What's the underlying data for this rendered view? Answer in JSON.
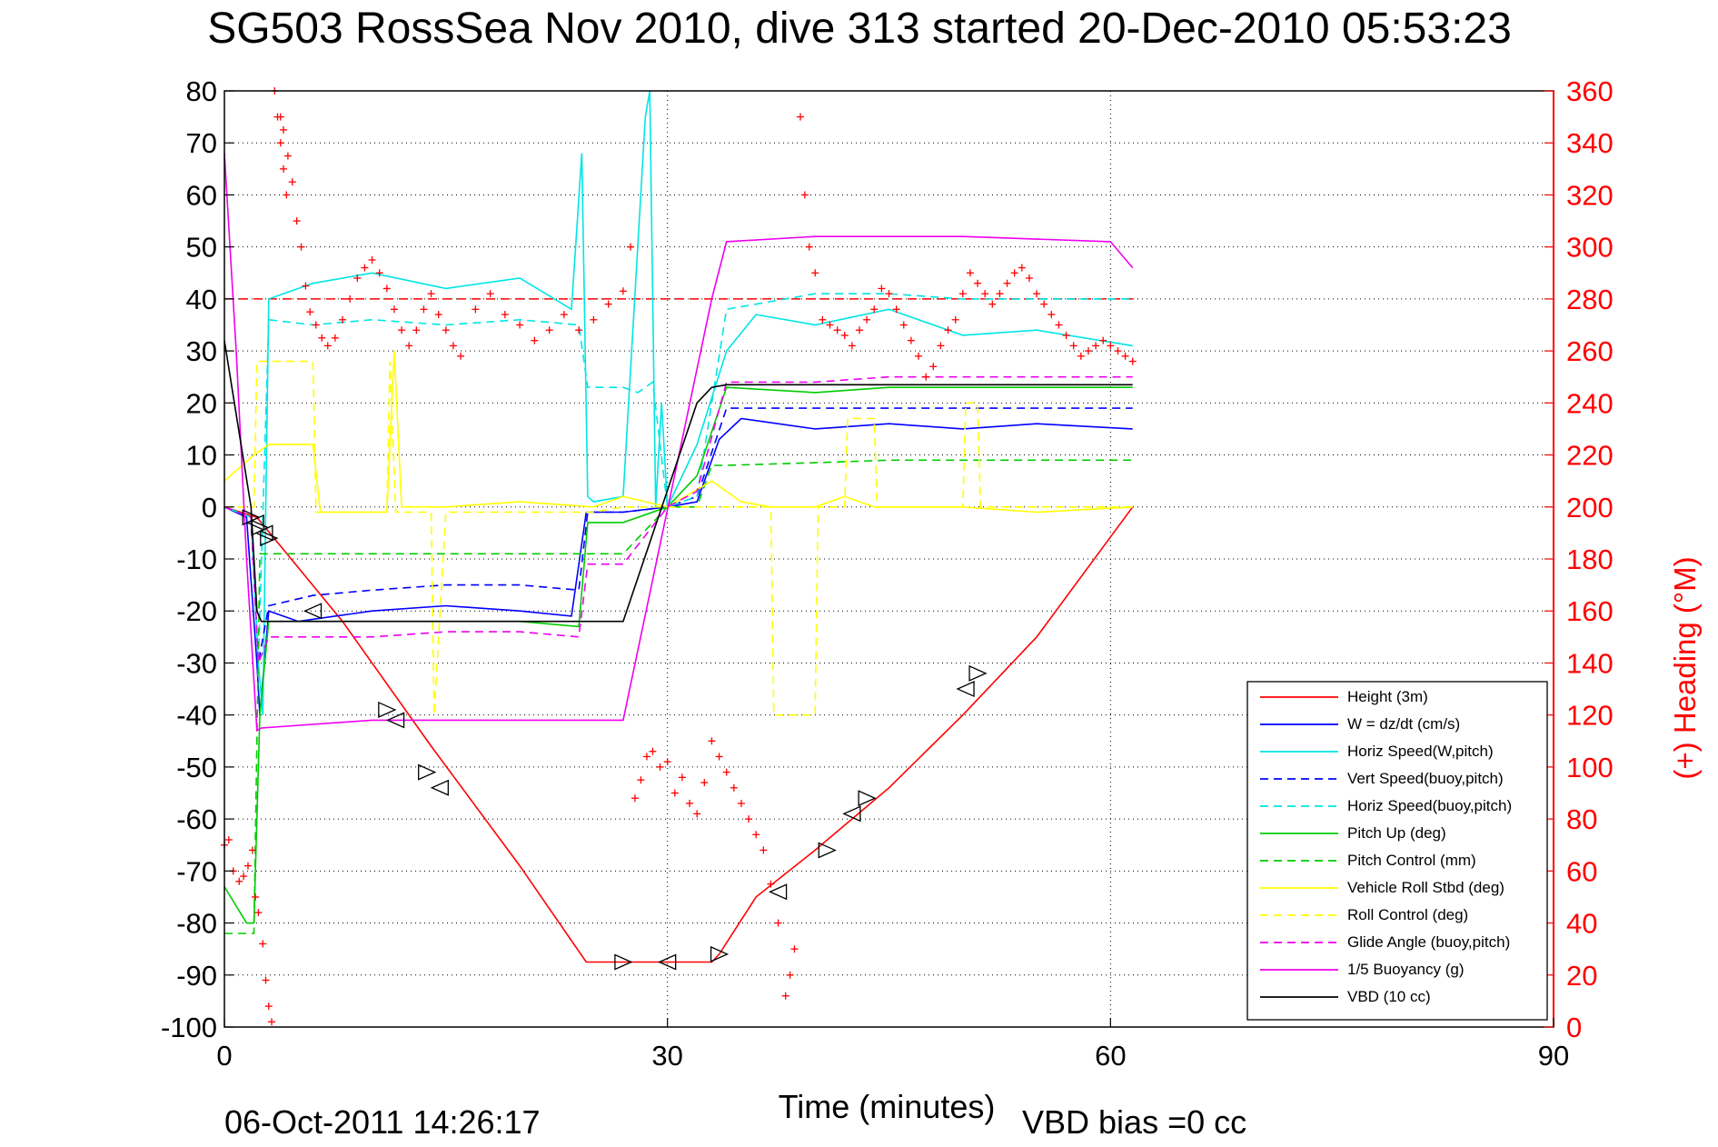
{
  "chart_data": {
    "type": "line",
    "title": "SG503 RossSea Nov 2010, dive 313 started 20-Dec-2010 05:53:23",
    "xlabel": "Time (minutes)",
    "ylabel_right": "(+) Heading (°M)",
    "xlim": [
      0,
      90
    ],
    "ylim": [
      -100,
      80
    ],
    "ylim_right": [
      0,
      360
    ],
    "x_ticks": [
      "0",
      "30",
      "60",
      "90"
    ],
    "y_ticks": [
      "80",
      "70",
      "60",
      "50",
      "40",
      "30",
      "20",
      "10",
      "0",
      "-10",
      "-20",
      "-30",
      "-40",
      "-50",
      "-60",
      "-70",
      "-80",
      "-90",
      "-100"
    ],
    "y_ticks_right": [
      "360",
      "340",
      "320",
      "300",
      "280",
      "260",
      "240",
      "220",
      "200",
      "180",
      "160",
      "140",
      "120",
      "100",
      "80",
      "60",
      "40",
      "20",
      "0"
    ],
    "grid": true,
    "legend_position": "bottom-right",
    "footer_date": "06-Oct-2011 14:26:17",
    "footer_vbd": "VBD bias =0 cc",
    "series": [
      {
        "name": "Height (3m)",
        "color": "#ff0000",
        "style": "solid",
        "x": [
          0,
          2.2,
          8,
          14,
          20,
          24.5,
          27,
          30,
          33,
          33.5,
          36,
          40,
          45,
          50,
          55,
          61.5
        ],
        "y": [
          0,
          -2,
          -22,
          -46,
          -69,
          -87.5,
          -87.5,
          -87.5,
          -87.5,
          -86,
          -75,
          -66,
          -54,
          -40,
          -25,
          0
        ]
      },
      {
        "name": "W = dz/dt (cm/s)",
        "color": "#0000ff",
        "style": "solid",
        "x": [
          0,
          1.5,
          2.2,
          2.4,
          3,
          5,
          10,
          15,
          20,
          23.5,
          24.5,
          27,
          30,
          32,
          33.5,
          35,
          40,
          45,
          50,
          55,
          61.5
        ],
        "y": [
          0,
          -2,
          -30,
          -40,
          -20,
          -22,
          -20,
          -19,
          -20,
          -21,
          -1,
          -1,
          0,
          1,
          13,
          17,
          15,
          16,
          15,
          16,
          15
        ]
      },
      {
        "name": "Horiz Speed(W,pitch)",
        "color": "#00e5e5",
        "style": "solid",
        "x": [
          0,
          1.8,
          2.3,
          2.6,
          3,
          6,
          10,
          15,
          20,
          23.5,
          24.2,
          24.6,
          25,
          27,
          28.5,
          28.8,
          29.2,
          29.6,
          30,
          32,
          34,
          36,
          40,
          45,
          50,
          55,
          61.5
        ],
        "y": [
          0,
          -2,
          -30,
          -40,
          40,
          43,
          45,
          42,
          44,
          38,
          68,
          2,
          1,
          2,
          75,
          80,
          0,
          20,
          0,
          12,
          30,
          37,
          35,
          38,
          33,
          34,
          31
        ]
      },
      {
        "name": "Vert Speed(buoy,pitch)",
        "color": "#0000ff",
        "style": "dashed",
        "x": [
          0,
          1.8,
          2.3,
          3,
          6,
          10,
          15,
          20,
          24,
          24.6,
          27,
          30,
          32,
          34,
          40,
          45,
          50,
          55,
          61.5
        ],
        "y": [
          0,
          -2,
          -30,
          -19,
          -17,
          -16,
          -15,
          -15,
          -16,
          -1,
          -1,
          0,
          2,
          19,
          19,
          19,
          19,
          19,
          19
        ]
      },
      {
        "name": "Horiz Speed(buoy,pitch)",
        "color": "#00e5e5",
        "style": "dashed",
        "x": [
          0,
          1.8,
          2.3,
          3,
          6,
          10,
          15,
          20,
          24,
          24.6,
          27,
          28,
          29,
          30,
          32,
          34,
          40,
          45,
          50,
          55,
          61.5
        ],
        "y": [
          0,
          -2,
          -30,
          36,
          35,
          36,
          35,
          36,
          35,
          23,
          23,
          22,
          24,
          0,
          2,
          38,
          41,
          41,
          40,
          40,
          40
        ]
      },
      {
        "name": "Pitch Up (deg)",
        "color": "#00cc00",
        "style": "solid",
        "x": [
          0,
          1.5,
          2.0,
          2.4,
          3,
          6,
          10,
          15,
          20,
          24,
          24.6,
          27,
          30,
          32,
          34,
          40,
          45,
          50,
          55,
          61.5
        ],
        "y": [
          -73,
          -80,
          -80,
          -40,
          -22,
          -22,
          -22,
          -22,
          -22,
          -23,
          -3,
          -3,
          0,
          6,
          23,
          22,
          23,
          23,
          23,
          23
        ]
      },
      {
        "name": "Pitch Control (mm)",
        "color": "#00cc00",
        "style": "dashed",
        "x": [
          0,
          1.5,
          2.0,
          2.4,
          3,
          6,
          10,
          15,
          20,
          24.5,
          24.6,
          27,
          30,
          32,
          33,
          34,
          40,
          45,
          50,
          55,
          61.5
        ],
        "y": [
          -82,
          -82,
          -82,
          -9,
          -9,
          -9,
          -9,
          -9,
          -9,
          -9,
          -9,
          -9,
          0,
          0,
          8,
          8,
          8.5,
          9,
          9,
          9,
          9
        ]
      },
      {
        "name": "Vehicle Roll Stbd (deg)",
        "color": "#ffff00",
        "style": "solid",
        "x": [
          0,
          2,
          3,
          6,
          6.5,
          11,
          11.5,
          12,
          14,
          15,
          20,
          25,
          27,
          30,
          33,
          35,
          37,
          40,
          42,
          44,
          50,
          55,
          61.5
        ],
        "y": [
          5,
          10,
          12,
          12,
          -1,
          -1,
          30,
          0,
          0,
          0,
          1,
          0,
          2,
          0,
          5,
          1,
          0,
          0,
          2,
          0,
          0,
          -1,
          0
        ]
      },
      {
        "name": "Roll Control (deg)",
        "color": "#ffff00",
        "style": "dashed",
        "x": [
          0,
          2,
          2.2,
          6,
          6.2,
          11,
          11.2,
          11.6,
          14,
          14.2,
          15,
          25,
          27,
          30,
          37,
          37.2,
          40,
          40.2,
          42,
          42.2,
          44,
          44.2,
          50,
          50.2,
          51,
          51.2,
          61.5
        ],
        "y": [
          0,
          0,
          28,
          28,
          -1,
          -1,
          28,
          -1,
          -1,
          -40,
          -1,
          -1,
          0,
          0,
          0,
          -40,
          -40,
          0,
          0,
          17,
          17,
          0,
          0,
          20,
          20,
          0,
          0
        ]
      },
      {
        "name": "Glide Angle (buoy,pitch)",
        "color": "#ee00ee",
        "style": "dashed",
        "x": [
          0,
          1.8,
          2.3,
          3,
          6,
          10,
          15,
          20,
          24,
          24.6,
          27,
          30,
          32,
          34,
          40,
          45,
          50,
          55,
          61.5
        ],
        "y": [
          0,
          -2,
          -30,
          -25,
          -25,
          -25,
          -24,
          -24,
          -25,
          -11,
          -11,
          0,
          3,
          24,
          24,
          25,
          25,
          25,
          25
        ]
      },
      {
        "name": "1/5 Buoyancy (g)",
        "color": "#ee00ee",
        "style": "solid",
        "x": [
          0,
          0.8,
          1.5,
          2.2,
          2.5,
          10,
          20,
          27,
          33,
          34,
          40,
          50,
          60,
          61.5
        ],
        "y": [
          68,
          30,
          -10,
          -43,
          -42.5,
          -41,
          -41,
          -41,
          40,
          51,
          52,
          52,
          51,
          46
        ]
      },
      {
        "name": "VBD (10 cc)",
        "color": "#000000",
        "style": "solid",
        "x": [
          0,
          1.8,
          2.2,
          2.5,
          10,
          20,
          27,
          32,
          33,
          34,
          40,
          50,
          61.5
        ],
        "y": [
          32,
          0,
          -20,
          -22,
          -22,
          -22,
          -22,
          20,
          23,
          23.5,
          23.5,
          23.5,
          23.5
        ]
      }
    ],
    "reference_lines": [
      {
        "axis": "right",
        "value": 280,
        "color": "#ff0000",
        "style": "dashed",
        "x_range": [
          0,
          61.5
        ]
      }
    ],
    "heading_scatter": {
      "axis": "right",
      "color": "#ff0000",
      "marker": "+",
      "x": [
        0,
        0.3,
        0.6,
        1.0,
        1.3,
        1.6,
        1.9,
        2.1,
        2.3,
        2.6,
        2.8,
        3.0,
        3.2,
        3.4,
        3.6,
        3.8,
        4.0,
        4.2,
        3.8,
        4.0,
        4.3,
        4.6,
        4.9,
        5.2,
        5.5,
        5.8,
        6.2,
        6.6,
        7.0,
        7.5,
        8.0,
        8.5,
        9.0,
        9.5,
        10.0,
        10.5,
        11.0,
        11.5,
        12.0,
        12.5,
        13.0,
        13.5,
        14.0,
        14.5,
        15.0,
        15.5,
        16.0,
        17.0,
        18.0,
        19.0,
        20.0,
        21.0,
        22.0,
        23.0,
        24.0,
        25.0,
        26.0,
        27.0,
        27.5,
        27.8,
        28.2,
        28.6,
        29.0,
        29.5,
        30.0,
        30.5,
        31.0,
        31.5,
        32.0,
        32.5,
        33.0,
        33.5,
        34.0,
        34.5,
        35.0,
        35.5,
        36.0,
        36.5,
        37.0,
        37.5,
        38.0,
        38.3,
        38.6,
        39.0,
        39.3,
        39.6,
        40.0,
        40.5,
        41.0,
        41.5,
        42.0,
        42.5,
        43.0,
        43.5,
        44.0,
        44.5,
        45.0,
        45.5,
        46.0,
        46.5,
        47.0,
        47.5,
        48.0,
        48.5,
        49.0,
        49.5,
        50.0,
        50.5,
        51.0,
        51.5,
        52.0,
        52.5,
        53.0,
        53.5,
        54.0,
        54.5,
        55.0,
        55.5,
        56.0,
        56.5,
        57.0,
        57.5,
        58.0,
        58.5,
        59.0,
        59.5,
        60.0,
        60.5,
        61.0,
        61.5
      ],
      "y": [
        70,
        72,
        60,
        56,
        58,
        62,
        68,
        50,
        44,
        32,
        18,
        8,
        2,
        360,
        350,
        340,
        330,
        320,
        350,
        345,
        335,
        325,
        310,
        300,
        285,
        275,
        270,
        265,
        262,
        265,
        272,
        280,
        288,
        292,
        295,
        290,
        284,
        276,
        268,
        262,
        268,
        276,
        282,
        274,
        268,
        262,
        258,
        276,
        282,
        274,
        270,
        264,
        268,
        274,
        268,
        272,
        278,
        283,
        300,
        88,
        95,
        104,
        106,
        100,
        102,
        90,
        96,
        86,
        82,
        94,
        110,
        104,
        98,
        92,
        86,
        80,
        74,
        68,
        55,
        40,
        12,
        20,
        30,
        350,
        320,
        300,
        290,
        272,
        270,
        268,
        266,
        262,
        268,
        272,
        276,
        284,
        282,
        276,
        270,
        264,
        258,
        250,
        254,
        262,
        268,
        272,
        282,
        290,
        286,
        282,
        278,
        282,
        286,
        290,
        292,
        288,
        282,
        278,
        274,
        270,
        266,
        262,
        258,
        260,
        262,
        264,
        262,
        260,
        258,
        256
      ]
    },
    "markers_left_triangle": {
      "note": "open triangles along Height curve",
      "x": [
        1.8,
        2.1,
        2.4,
        2.7,
        3.0,
        6.0,
        11.0,
        11.6,
        13.7,
        14.6,
        27.0,
        30.0,
        33.5,
        37.5,
        40.8,
        42.5,
        43.5,
        50.2,
        51.0
      ],
      "y": [
        -2,
        -3,
        -4,
        -5,
        -6,
        -20,
        -39,
        -41,
        -51,
        -54,
        -87.5,
        -87.5,
        -86,
        -74,
        -66,
        -59,
        -56,
        -35,
        -32
      ]
    }
  }
}
